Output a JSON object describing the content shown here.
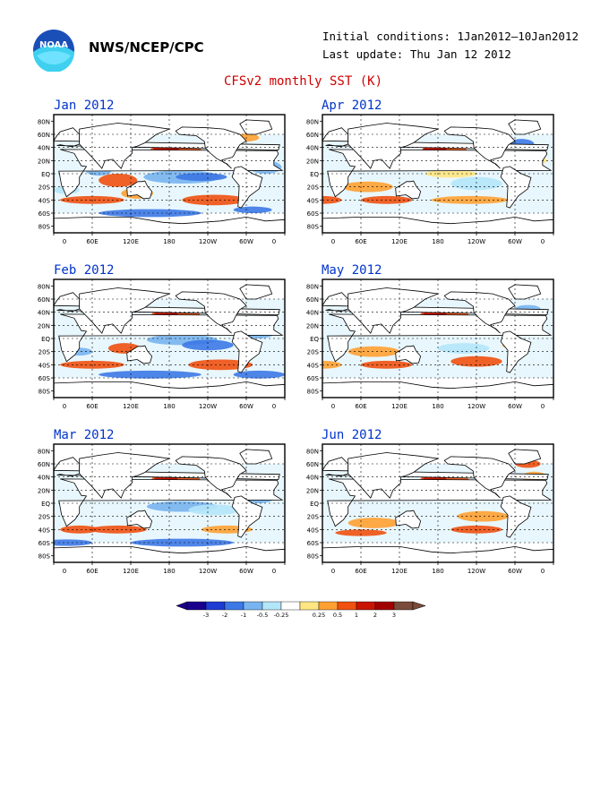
{
  "header": {
    "org": "NWS/NCEP/CPC",
    "initial_conditions": "Initial conditions: 1Jan2012–10Jan2012",
    "last_update": "Last update: Thu Jan 12 2012",
    "title": "CFSv2 monthly SST (K)"
  },
  "logo": {
    "text": "NOAA"
  },
  "panels": [
    {
      "title": "Jan 2012"
    },
    {
      "title": "Apr 2012"
    },
    {
      "title": "Feb 2012"
    },
    {
      "title": "May 2012"
    },
    {
      "title": "Mar 2012"
    },
    {
      "title": "Jun 2012"
    }
  ],
  "axes": {
    "lat_labels": [
      "80N",
      "60N",
      "40N",
      "20N",
      "EQ",
      "20S",
      "40S",
      "60S",
      "80S"
    ],
    "lon_labels": [
      "0",
      "60E",
      "120E",
      "180",
      "120W",
      "60W",
      "0"
    ]
  },
  "colorbar": {
    "labels": [
      "-3",
      "-2",
      "-1",
      "-0.5",
      "-0.25",
      "0.25",
      "0.5",
      "1",
      "2",
      "3"
    ],
    "colors": [
      "#1a008c",
      "#1e3cd2",
      "#3c78e6",
      "#78b4f0",
      "#b4e6fa",
      "#ffffff",
      "#ffe682",
      "#ffa032",
      "#f05010",
      "#c81400",
      "#a00000",
      "#7a4a3a"
    ]
  }
}
